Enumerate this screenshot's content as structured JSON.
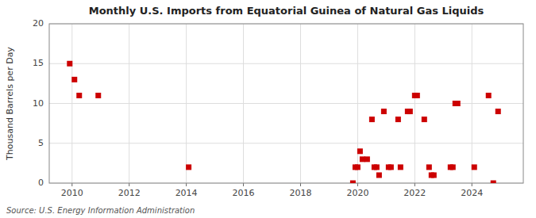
{
  "chart_data": {
    "type": "scatter",
    "title": "Monthly U.S. Imports from Equatorial Guinea of Natural Gas Liquids",
    "ylabel": "Thousand Barrels per Day",
    "annotations": [
      "Source: U.S. Energy Information Administration"
    ],
    "color": "#cc0000",
    "marker": "square",
    "grid": true,
    "xlim": [
      2009.2,
      2025.8
    ],
    "ylim": [
      0,
      20
    ],
    "xticks": [
      2010,
      2012,
      2014,
      2016,
      2018,
      2020,
      2022,
      2024
    ],
    "yticks": [
      0,
      5,
      10,
      15,
      20
    ],
    "x": [
      2009.917,
      2010.083,
      2010.25,
      2010.917,
      2014.083,
      2019.833,
      2019.917,
      2020.0,
      2020.083,
      2020.167,
      2020.333,
      2020.5,
      2020.583,
      2020.667,
      2020.75,
      2020.917,
      2021.083,
      2021.167,
      2021.417,
      2021.5,
      2021.75,
      2021.833,
      2022.0,
      2022.083,
      2022.333,
      2022.5,
      2022.583,
      2022.667,
      2023.25,
      2023.333,
      2023.417,
      2023.5,
      2024.083,
      2024.583,
      2024.75,
      2024.917
    ],
    "values": [
      15,
      13,
      11,
      11,
      2,
      0,
      2,
      2,
      4,
      3,
      3,
      8,
      2,
      2,
      1,
      9,
      2,
      2,
      8,
      2,
      9,
      9,
      11,
      11,
      8,
      2,
      1,
      1,
      2,
      2,
      10,
      10,
      2,
      11,
      0,
      9
    ]
  }
}
